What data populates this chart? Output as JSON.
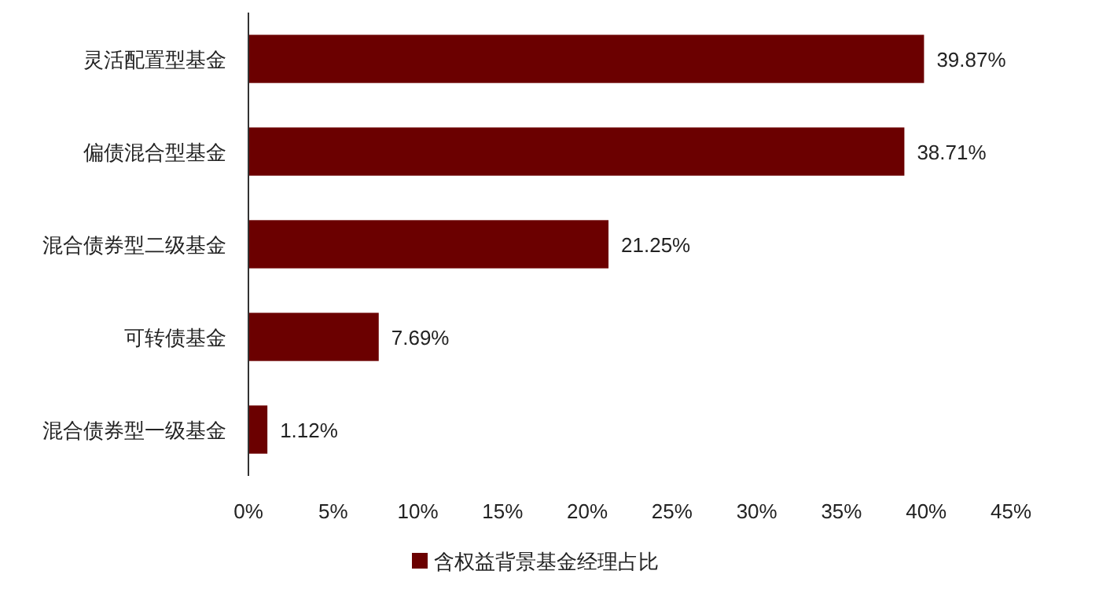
{
  "chart_data": {
    "type": "bar",
    "orientation": "horizontal",
    "categories": [
      "灵活配置型基金",
      "偏债混合型基金",
      "混合债券型二级基金",
      "可转债基金",
      "混合债券型一级基金"
    ],
    "series": [
      {
        "name": "含权益背景基金经理占比",
        "color": "#6b0000",
        "values": [
          39.87,
          38.71,
          21.25,
          7.69,
          1.12
        ],
        "value_labels": [
          "39.87%",
          "38.71%",
          "21.25%",
          "7.69%",
          "1.12%"
        ]
      }
    ],
    "xlim": [
      0,
      45
    ],
    "xticks": [
      {
        "value": 0,
        "label": "0%"
      },
      {
        "value": 5,
        "label": "5%"
      },
      {
        "value": 10,
        "label": "10%"
      },
      {
        "value": 15,
        "label": "15%"
      },
      {
        "value": 20,
        "label": "20%"
      },
      {
        "value": 25,
        "label": "25%"
      },
      {
        "value": 30,
        "label": "30%"
      },
      {
        "value": 35,
        "label": "35%"
      },
      {
        "value": 40,
        "label": "40%"
      },
      {
        "value": 45,
        "label": "45%"
      }
    ],
    "grid": false,
    "legend": "bottom"
  }
}
